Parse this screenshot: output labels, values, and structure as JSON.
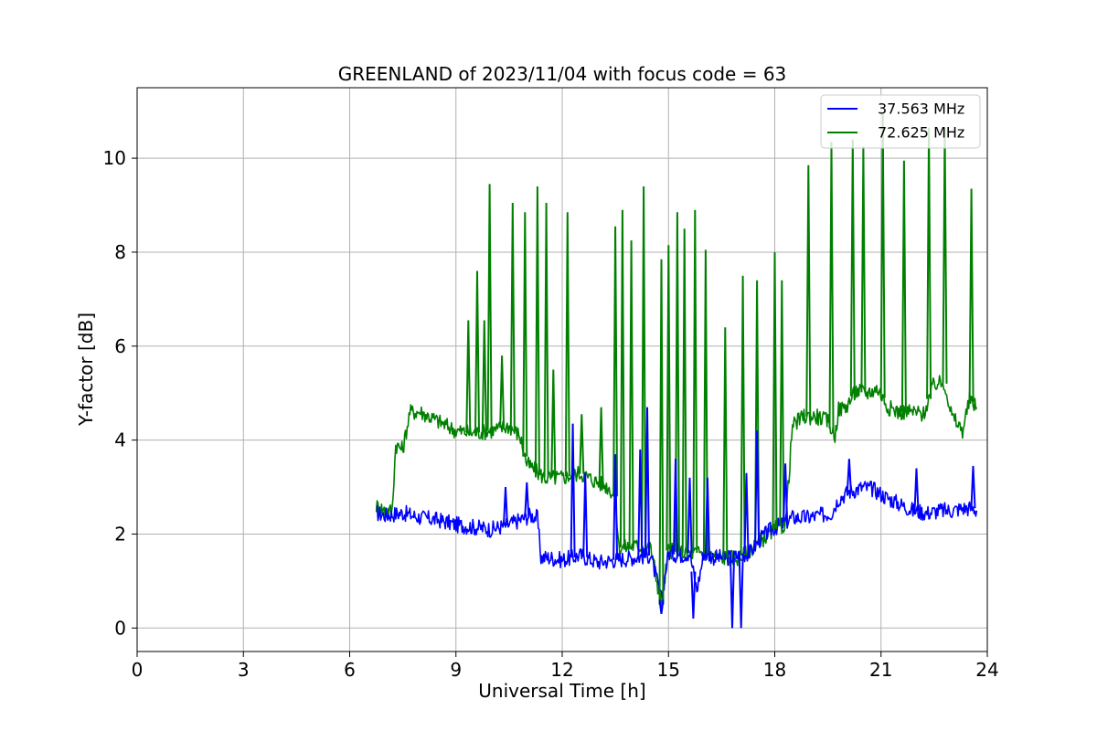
{
  "chart_data": {
    "type": "line",
    "title": "GREENLAND of 2023/11/04 with focus code = 63",
    "xlabel": "Universal Time [h]",
    "ylabel": "Y-factor [dB]",
    "xlim": [
      0,
      24
    ],
    "ylim": [
      -0.5,
      11.5
    ],
    "xticks": [
      0,
      3,
      6,
      9,
      12,
      15,
      18,
      21,
      24
    ],
    "yticks": [
      0,
      2,
      4,
      6,
      8,
      10
    ],
    "xtick_labels": [
      "0",
      "3",
      "6",
      "9",
      "12",
      "15",
      "18",
      "21",
      "24"
    ],
    "ytick_labels": [
      "0",
      "2",
      "4",
      "6",
      "8",
      "10"
    ],
    "grid": true,
    "legend_position": "top-right",
    "series": [
      {
        "name": "37.563 MHz",
        "color": "#0000ff",
        "x": [
          6.75,
          7.0,
          7.5,
          8.0,
          8.5,
          9.0,
          9.5,
          10.0,
          10.5,
          10.8,
          11.1,
          11.3,
          11.4,
          11.6,
          12.0,
          12.3,
          12.5,
          13.0,
          13.5,
          14.0,
          14.5,
          14.8,
          15.0,
          15.3,
          15.6,
          15.8,
          16.0,
          16.3,
          16.6,
          16.8,
          17.0,
          17.3,
          17.6,
          17.9,
          18.2,
          18.5,
          18.9,
          19.3,
          19.6,
          19.8,
          20.1,
          20.5,
          20.8,
          21.1,
          21.5,
          21.9,
          22.3,
          22.7,
          23.0,
          23.3,
          23.6,
          23.7
        ],
        "y": [
          2.45,
          2.4,
          2.45,
          2.35,
          2.3,
          2.2,
          2.15,
          2.1,
          2.2,
          2.3,
          2.4,
          2.35,
          1.5,
          1.5,
          1.45,
          1.5,
          1.55,
          1.4,
          1.45,
          1.5,
          1.55,
          0.6,
          1.6,
          1.55,
          1.6,
          0.8,
          1.6,
          1.5,
          1.5,
          1.5,
          1.55,
          1.6,
          1.9,
          2.1,
          2.2,
          2.35,
          2.35,
          2.4,
          2.45,
          2.75,
          2.9,
          3.0,
          2.95,
          2.8,
          2.65,
          2.5,
          2.45,
          2.5,
          2.5,
          2.55,
          2.55,
          2.5
        ]
      },
      {
        "name": "72.625 MHz",
        "color": "#008000",
        "x": [
          6.75,
          7.0,
          7.2,
          7.3,
          7.5,
          7.7,
          8.0,
          8.5,
          9.0,
          9.5,
          10.0,
          10.5,
          10.8,
          11.0,
          11.5,
          12.0,
          12.5,
          13.0,
          13.3,
          13.5,
          13.6,
          14.0,
          14.5,
          14.8,
          15.0,
          15.5,
          16.0,
          16.5,
          17.0,
          17.2,
          17.5,
          18.0,
          18.3,
          18.5,
          18.8,
          19.2,
          19.5,
          19.7,
          19.8,
          20.0,
          20.3,
          20.6,
          20.9,
          21.2,
          21.5,
          21.9,
          22.2,
          22.5,
          22.8,
          23.0,
          23.3,
          23.5,
          23.7
        ],
        "y": [
          2.6,
          2.5,
          2.5,
          3.9,
          3.8,
          4.6,
          4.6,
          4.4,
          4.2,
          4.15,
          4.2,
          4.3,
          4.1,
          3.5,
          3.2,
          3.2,
          3.3,
          3.1,
          3.0,
          2.8,
          1.7,
          1.75,
          1.7,
          0.5,
          1.65,
          1.6,
          1.6,
          1.5,
          1.5,
          1.6,
          1.8,
          2.1,
          2.2,
          4.3,
          4.5,
          4.5,
          4.4,
          4.1,
          4.65,
          4.7,
          5.05,
          5.0,
          5.1,
          4.7,
          4.6,
          4.6,
          4.55,
          5.2,
          5.2,
          4.5,
          4.2,
          4.85,
          4.7
        ]
      }
    ],
    "spikes": [
      {
        "series": "72.625 MHz",
        "x": [
          9.35,
          9.6,
          9.8,
          9.95,
          10.3,
          10.6,
          10.95,
          11.3,
          11.55,
          11.75,
          12.15,
          12.55,
          13.1,
          13.5,
          13.7,
          13.95,
          14.3,
          14.8,
          15.0,
          15.25,
          15.45,
          15.75,
          16.05,
          16.6,
          17.1,
          17.5,
          18.0,
          18.2,
          18.95,
          19.6,
          20.2,
          20.5,
          21.05,
          21.65,
          22.35,
          22.8,
          23.55
        ],
        "peak": [
          6.55,
          7.6,
          6.55,
          9.45,
          5.8,
          9.05,
          8.85,
          9.4,
          9.05,
          5.5,
          8.85,
          4.55,
          4.7,
          8.55,
          8.9,
          8.25,
          9.4,
          7.85,
          8.15,
          8.85,
          8.5,
          8.9,
          8.05,
          6.4,
          7.5,
          7.4,
          8.0,
          7.4,
          9.85,
          10.35,
          10.4,
          10.25,
          10.95,
          9.95,
          10.65,
          10.65,
          9.35
        ]
      },
      {
        "series": "37.563 MHz",
        "x": [
          10.4,
          11.0,
          12.3,
          12.65,
          13.5,
          14.2,
          14.4,
          15.2,
          15.6,
          16.1,
          17.2,
          17.5,
          18.3,
          20.1,
          22.0,
          23.6
        ],
        "peak": [
          3.0,
          3.1,
          4.35,
          3.3,
          3.7,
          3.8,
          4.7,
          3.6,
          3.2,
          3.2,
          3.3,
          4.2,
          3.5,
          3.6,
          3.4,
          3.45
        ]
      },
      {
        "series": "37.563 MHz",
        "x": [
          14.8,
          15.7,
          16.8,
          17.05
        ],
        "peak": [
          0.3,
          0.2,
          0.0,
          0.0
        ]
      }
    ]
  }
}
